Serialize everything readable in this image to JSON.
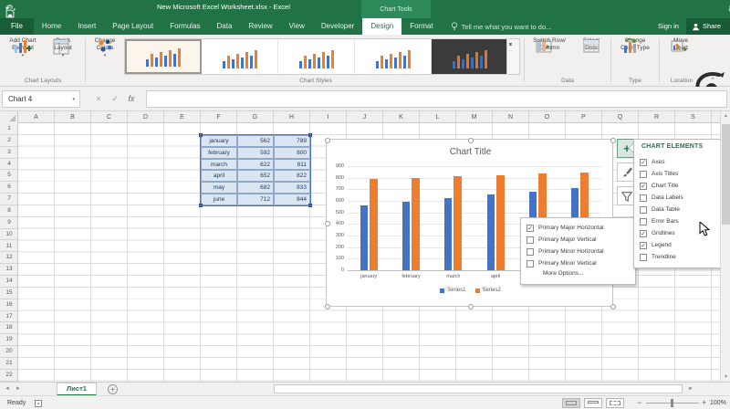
{
  "titlebar": {
    "title": "New Microsoft Excel Worksheet.xlsx - Excel",
    "contextual_label": "Chart Tools",
    "sign_in": "Sign in",
    "share": "Share"
  },
  "tabs": [
    "File",
    "Home",
    "Insert",
    "Page Layout",
    "Formulas",
    "Data",
    "Review",
    "View",
    "Developer",
    "Design",
    "Format"
  ],
  "active_tab": "Design",
  "tell_me": "Tell me what you want to do...",
  "ribbon": {
    "buttons": {
      "add_chart_element": {
        "l1": "Add Chart",
        "l2": "Element"
      },
      "quick_layout": {
        "l1": "Quick",
        "l2": "Layout"
      },
      "change_colors": {
        "l1": "Change",
        "l2": "Colors"
      },
      "switch_row_column": {
        "l1": "Switch Row/",
        "l2": "Column"
      },
      "select_data": {
        "l1": "Select",
        "l2": "Data"
      },
      "change_chart_type": {
        "l1": "Change",
        "l2": "Chart Type"
      },
      "move_chart": {
        "l1": "Move",
        "l2": "Chart"
      }
    },
    "group_labels": {
      "chart_layouts": "Chart Layouts",
      "chart_styles": "Chart Styles",
      "data": "Data",
      "type": "Type",
      "location": "Location"
    }
  },
  "formula_bar": {
    "name_box": "Chart 4",
    "fx": "fx"
  },
  "grid": {
    "columns": [
      "A",
      "B",
      "C",
      "D",
      "E",
      "F",
      "G",
      "H",
      "I",
      "J",
      "K",
      "L",
      "M",
      "N",
      "O",
      "P",
      "Q",
      "R",
      "S"
    ],
    "row_count": 23
  },
  "data_table": {
    "rows": [
      {
        "month": "january",
        "v1": "562",
        "v2": "789"
      },
      {
        "month": "february",
        "v1": "592",
        "v2": "800"
      },
      {
        "month": "march",
        "v1": "622",
        "v2": "811"
      },
      {
        "month": "april",
        "v1": "652",
        "v2": "822"
      },
      {
        "month": "may",
        "v1": "682",
        "v2": "833"
      },
      {
        "month": "june",
        "v1": "712",
        "v2": "844"
      }
    ]
  },
  "chart_data": {
    "type": "bar",
    "title": "Chart Title",
    "categories": [
      "january",
      "february",
      "march",
      "april",
      "may",
      "june"
    ],
    "series": [
      {
        "name": "Series1",
        "color": "#4472c4",
        "values": [
          562,
          592,
          622,
          652,
          682,
          712
        ]
      },
      {
        "name": "Series2",
        "color": "#ed7d31",
        "values": [
          789,
          800,
          811,
          822,
          833,
          844
        ]
      }
    ],
    "ylim": [
      0,
      900
    ],
    "ytick_step": 100,
    "gridlines": "horizontal-major",
    "legend_position": "bottom"
  },
  "chart_elements_panel": {
    "title": "CHART ELEMENTS",
    "items": [
      {
        "label": "Axes",
        "checked": true
      },
      {
        "label": "Axis Titles",
        "checked": false
      },
      {
        "label": "Chart Title",
        "checked": true
      },
      {
        "label": "Data Labels",
        "checked": false
      },
      {
        "label": "Data Table",
        "checked": false
      },
      {
        "label": "Error Bars",
        "checked": false
      },
      {
        "label": "Gridlines",
        "checked": true
      },
      {
        "label": "Legend",
        "checked": true
      },
      {
        "label": "Trendline",
        "checked": false
      }
    ]
  },
  "gridlines_menu": {
    "items": [
      {
        "label": "Primary Major Horizontal",
        "checked": true
      },
      {
        "label": "Primary Major Vertical",
        "checked": false
      },
      {
        "label": "Primary Minor Horizontal",
        "checked": false
      },
      {
        "label": "Primary Minor Vertical",
        "checked": false
      }
    ],
    "more_options": "More Options..."
  },
  "sheet_tabs": {
    "active": "Лист1"
  },
  "status": {
    "ready": "Ready",
    "zoom": "100%"
  },
  "colors": {
    "excel_green": "#217346",
    "series1_blue": "#4472c4",
    "series2_orange": "#ed7d31",
    "selection_fill": "#dce6f2",
    "selection_border": "#4472c4"
  }
}
